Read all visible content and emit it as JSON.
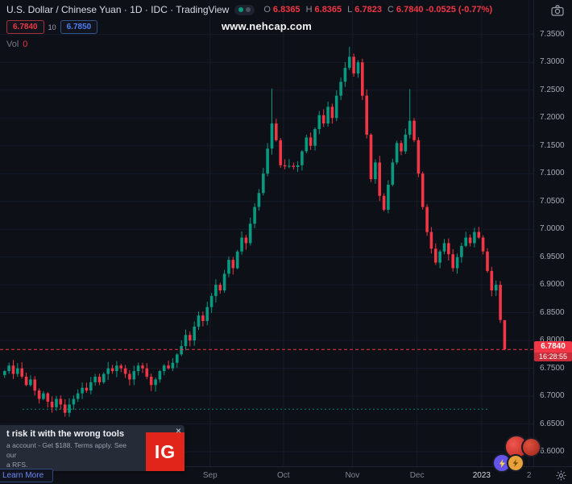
{
  "header": {
    "symbol_title": "U.S. Dollar / Chinese Yuan · 1D · IDC · TradingView",
    "ohlc": {
      "o_label": "O",
      "o_value": "6.8365",
      "h_label": "H",
      "h_value": "6.8365",
      "l_label": "L",
      "l_value": "6.7823",
      "c_label": "C",
      "c_value": "6.7840",
      "change": "-0.0525 (-0.77%)"
    },
    "sell_price": "6.7840",
    "spread": "10",
    "buy_price": "6.7850",
    "vol_label": "Vol",
    "vol_value": "0"
  },
  "watermark": "www.nehcap.com",
  "colors": {
    "background": "#0d1017",
    "grid": "#151b28",
    "accent_blue": "#2962ff",
    "axis_text": "#a6aab5",
    "ad_red": "#e1251b"
  },
  "chart_data": {
    "type": "candlestick",
    "title": "U.S. Dollar / Chinese Yuan",
    "timeframe": "1D",
    "exchange": "IDC",
    "up_color": "#089981",
    "down_color": "#f23645",
    "y_axis": {
      "min": 6.574,
      "max": 7.412
    },
    "y_ticks": [
      "7.3500",
      "7.3000",
      "7.2500",
      "7.2000",
      "7.1500",
      "7.1000",
      "7.0500",
      "7.0000",
      "6.9500",
      "6.9000",
      "6.8500",
      "6.8000",
      "6.7500",
      "6.7000",
      "6.6500",
      "6.6000"
    ],
    "x_ticks": [
      {
        "label": "Sep",
        "index": 48,
        "major": false
      },
      {
        "label": "Oct",
        "index": 65,
        "major": false
      },
      {
        "label": "Nov",
        "index": 81,
        "major": false
      },
      {
        "label": "Dec",
        "index": 96,
        "major": false
      },
      {
        "label": "2023",
        "index": 111,
        "major": true
      },
      {
        "label": "2",
        "index": 122,
        "major": false
      }
    ],
    "first_open": 6.738,
    "closes": [
      6.745,
      6.755,
      6.74,
      6.75,
      6.735,
      6.72,
      6.73,
      6.71,
      6.695,
      6.705,
      6.69,
      6.68,
      6.695,
      6.685,
      6.67,
      6.685,
      6.695,
      6.705,
      6.715,
      6.71,
      6.725,
      6.735,
      6.725,
      6.74,
      6.75,
      6.745,
      6.755,
      6.75,
      6.74,
      6.73,
      6.745,
      6.755,
      6.75,
      6.735,
      6.72,
      6.73,
      6.745,
      6.755,
      6.75,
      6.76,
      6.775,
      6.79,
      6.81,
      6.8,
      6.825,
      6.845,
      6.835,
      6.86,
      6.88,
      6.9,
      6.89,
      6.92,
      6.945,
      6.93,
      6.96,
      6.985,
      6.975,
      7.01,
      7.04,
      7.065,
      7.1,
      7.145,
      7.19,
      7.16,
      7.115,
      7.113,
      7.114,
      7.112,
      7.115,
      7.14,
      7.165,
      7.15,
      7.18,
      7.205,
      7.19,
      7.22,
      7.2,
      7.24,
      7.265,
      7.29,
      7.31,
      7.28,
      7.3,
      7.24,
      7.17,
      7.09,
      7.12,
      7.06,
      7.035,
      7.08,
      7.12,
      7.155,
      7.14,
      7.17,
      7.195,
      7.16,
      7.1,
      7.04,
      6.995,
      6.965,
      6.94,
      6.96,
      6.975,
      6.955,
      6.93,
      6.95,
      6.97,
      6.985,
      6.975,
      6.995,
      6.985,
      6.96,
      6.925,
      6.89,
      6.9,
      6.837,
      6.784
    ],
    "wick_overrides": {
      "62": 7.253,
      "80": 7.328,
      "94": 7.252
    },
    "last_candle": {
      "open": 6.8365,
      "high": 6.8365,
      "low": 6.7823,
      "close": 6.784
    },
    "current_price": "6.7840",
    "current_price_value": 6.784,
    "countdown": "16:28:55",
    "dashed_level": 6.6765
  },
  "ad": {
    "title": "t risk it with the wrong tools",
    "line1": "a account - Get $188. Terms apply. See our",
    "line2": "a RFS.",
    "cta": "Learn More",
    "logo_text": "IG",
    "close": "×"
  }
}
